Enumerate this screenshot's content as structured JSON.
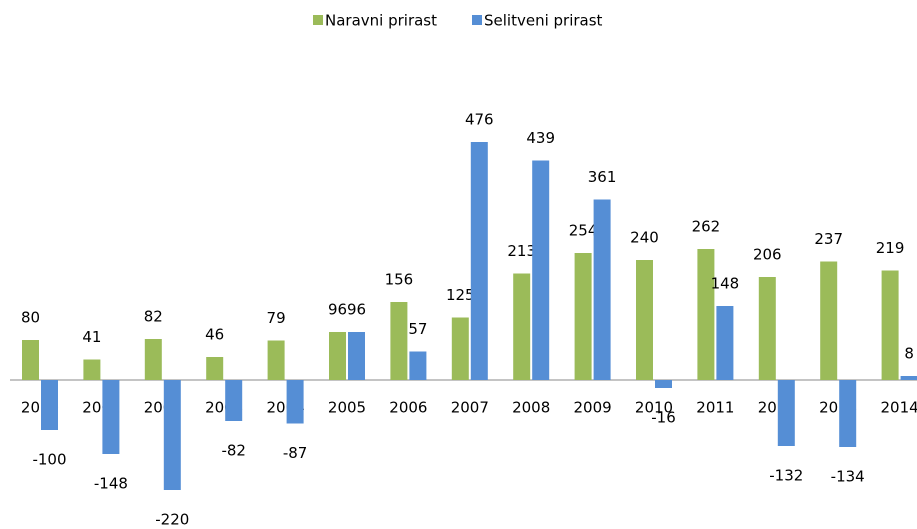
{
  "chart_data": {
    "type": "bar",
    "categories": [
      "2000",
      "2001",
      "2002",
      "2003",
      "2004",
      "2005",
      "2006",
      "2007",
      "2008",
      "2009",
      "2010",
      "2011",
      "2012",
      "2013",
      "2014"
    ],
    "series": [
      {
        "name": "Naravni prirast",
        "color": "#9bbb59",
        "values": [
          80,
          41,
          82,
          46,
          79,
          96,
          156,
          125,
          213,
          254,
          240,
          262,
          206,
          237,
          219
        ]
      },
      {
        "name": "Selitveni prirast",
        "color": "#558ed5",
        "values": [
          -100,
          -148,
          -220,
          -82,
          -87,
          96,
          57,
          476,
          439,
          361,
          -16,
          148,
          -132,
          -134,
          8
        ]
      }
    ],
    "ylim": [
      -250,
      550
    ],
    "legend": "top"
  }
}
